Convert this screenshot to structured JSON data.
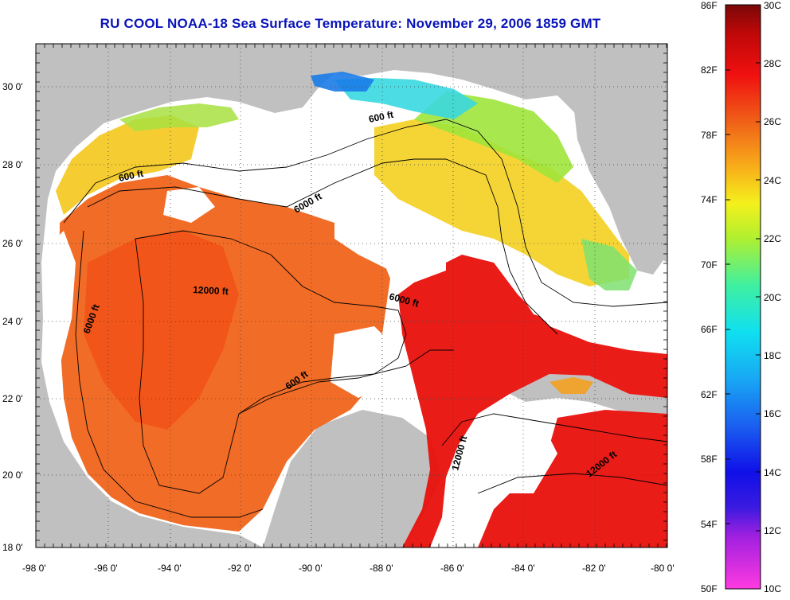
{
  "title": "RU COOL  NOAA-18  Sea Surface Temperature:  November 29, 2006 1859 GMT",
  "map": {
    "lon_ticks": [
      "-98 0'",
      "-96 0'",
      "-94 0'",
      "-92 0'",
      "-90 0'",
      "-88 0'",
      "-86 0'",
      "-84 0'",
      "-82 0'",
      "-80 0'"
    ],
    "lat_ticks": [
      "30 0'",
      "28 0'",
      "26 0'",
      "24 0'",
      "22 0'",
      "20 0'",
      "18 0'"
    ],
    "lon_range": [
      -98,
      -80
    ],
    "lat_range": [
      18,
      31.2
    ],
    "contour_labels": [
      "600 ft",
      "600 ft",
      "6000 ft",
      "12000 ft",
      "6000 ft",
      "6000 ft",
      "600 ft",
      "12000 ft",
      "12000 ft"
    ],
    "colors": {
      "land": "#c0c0c0",
      "cloud": "#ffffff",
      "warm_red": "#e8100c",
      "orange": "#f0641a",
      "yellow": "#f4d81c",
      "green": "#9ee43a",
      "cyan": "#38d8e0",
      "blue": "#1a7ce8"
    }
  },
  "colorbar": {
    "fahrenheit": [
      "86F",
      "82F",
      "78F",
      "74F",
      "70F",
      "66F",
      "62F",
      "58F",
      "54F",
      "50F"
    ],
    "celsius": [
      "30C",
      "28C",
      "26C",
      "24C",
      "22C",
      "20C",
      "18C",
      "16C",
      "14C",
      "12C",
      "10C"
    ]
  }
}
